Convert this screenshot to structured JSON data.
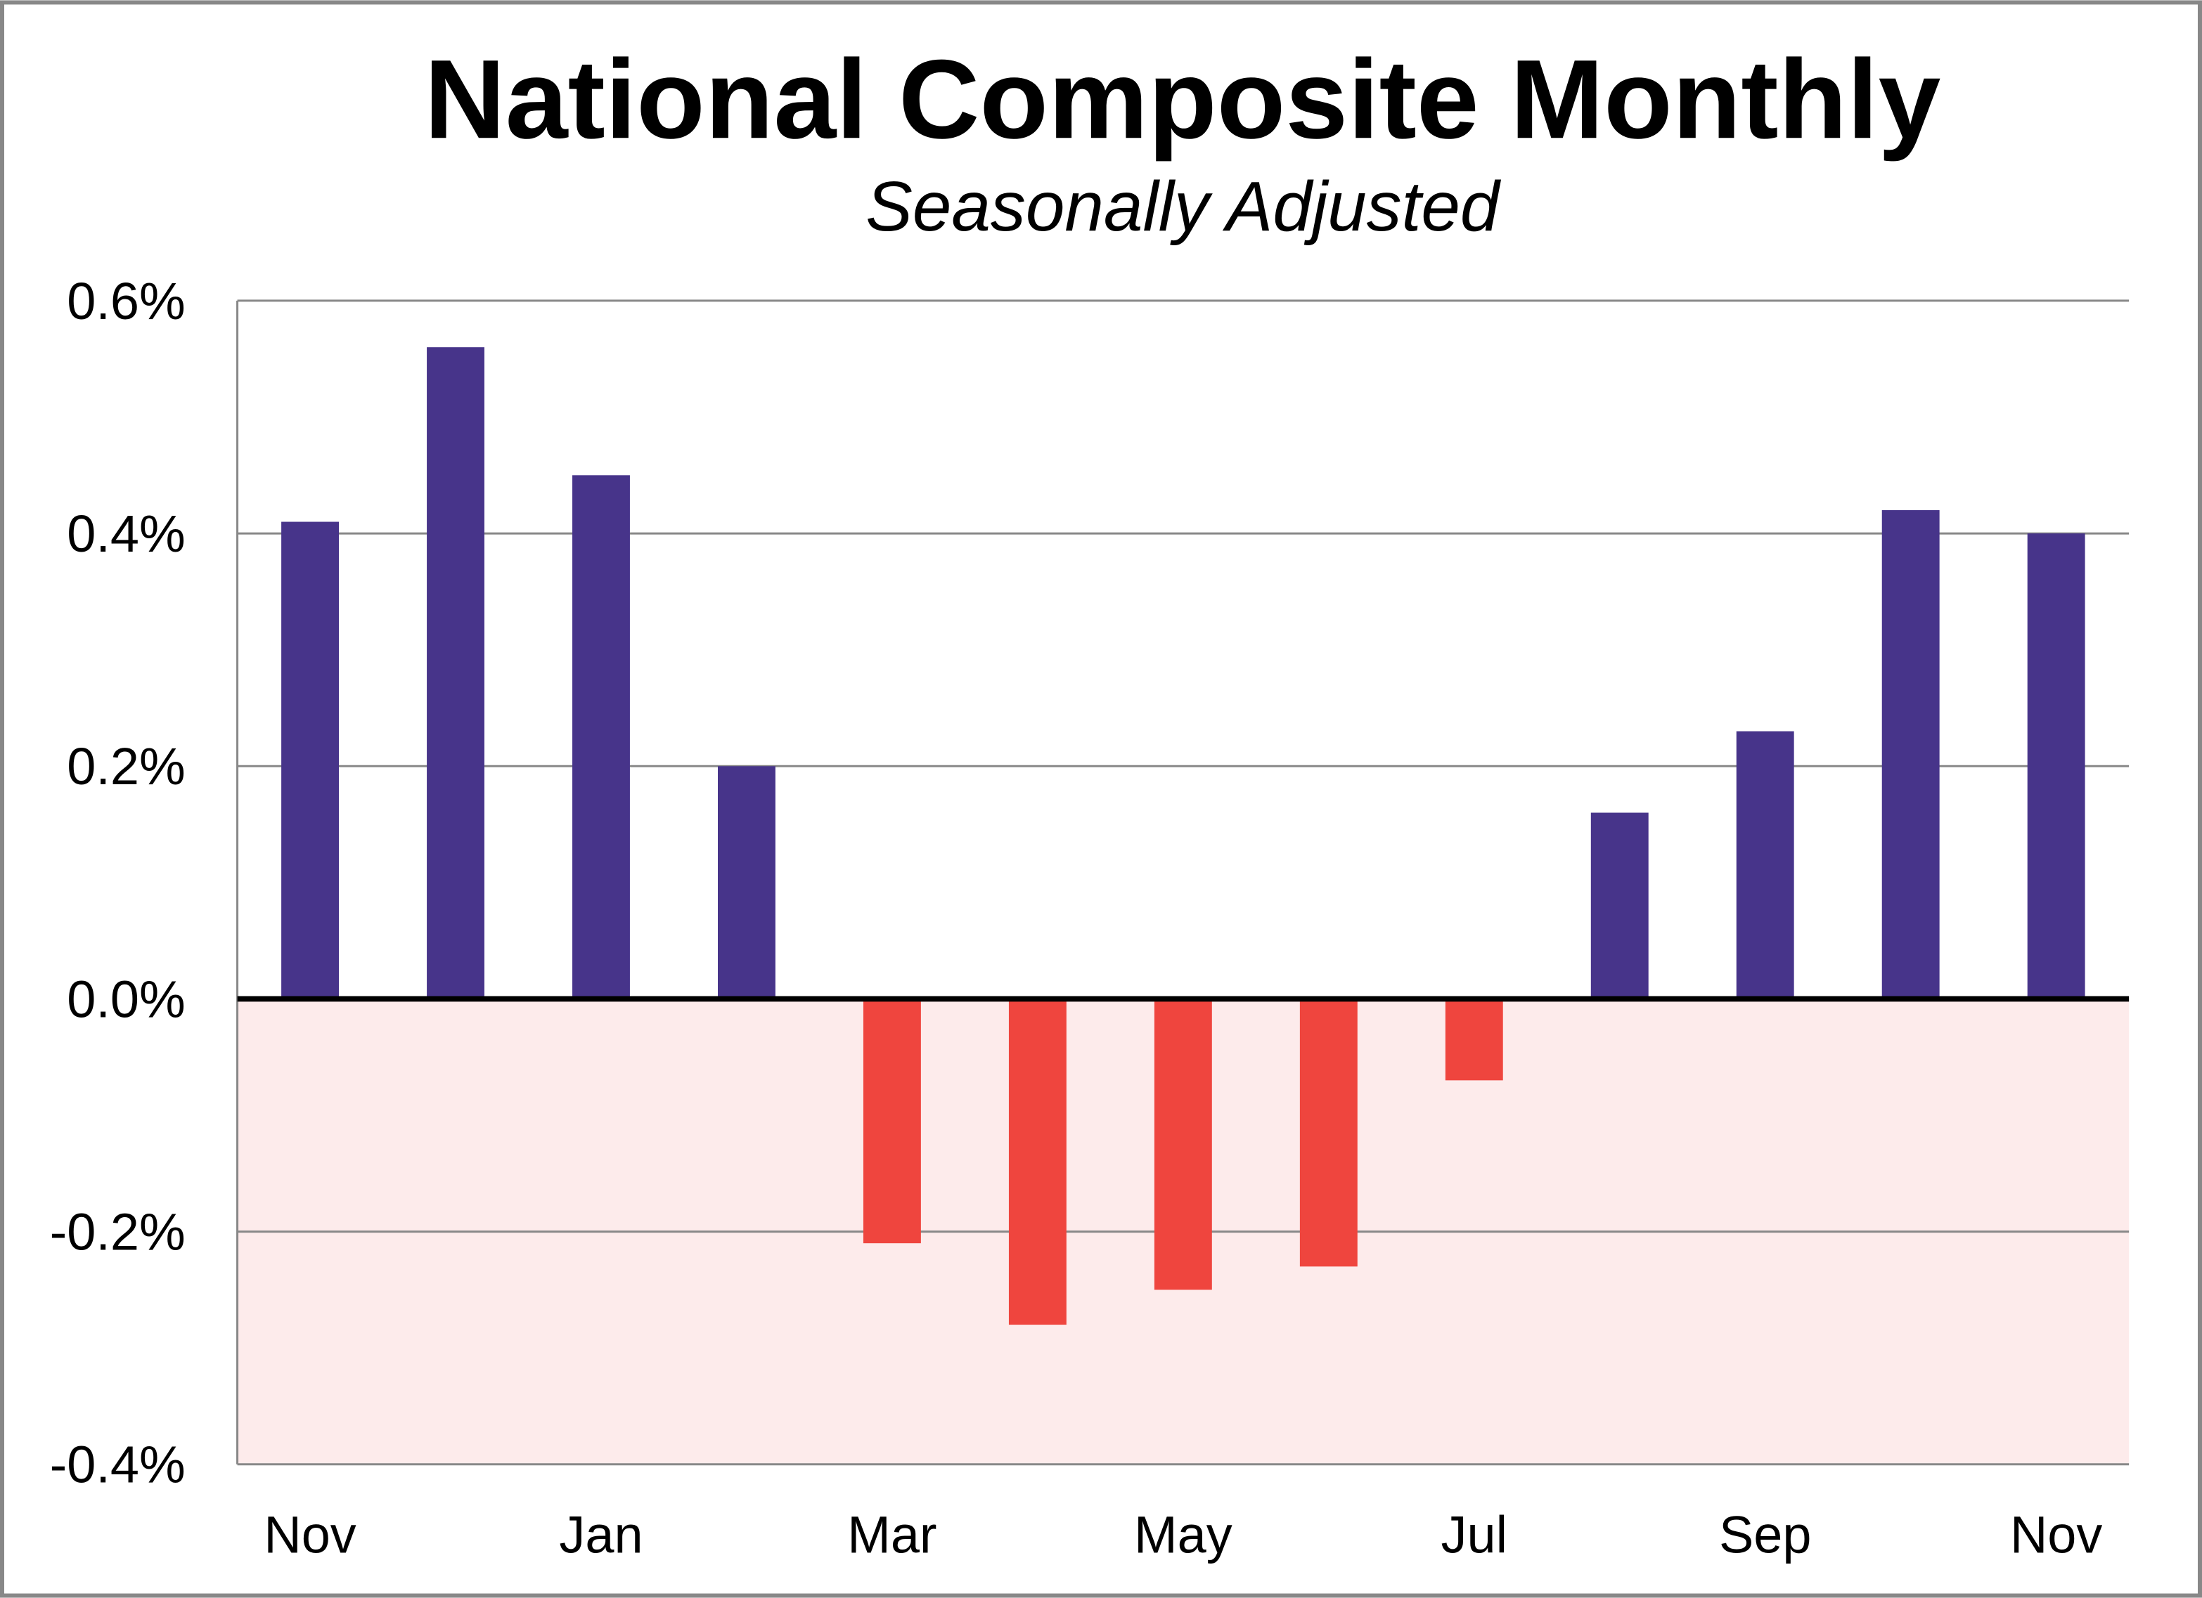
{
  "chart_data": {
    "type": "bar",
    "title": "National Composite Monthly",
    "subtitle": "Seasonally Adjusted",
    "xlabel": "",
    "ylabel": "",
    "x_tick_labels": [
      "Nov",
      "",
      "Jan",
      "",
      "Mar",
      "",
      "May",
      "",
      "Jul",
      "",
      "Sep",
      "",
      "Nov"
    ],
    "values": [
      0.41,
      0.56,
      0.45,
      0.2,
      -0.21,
      -0.28,
      -0.25,
      -0.23,
      -0.07,
      0.16,
      0.23,
      0.42,
      0.4
    ],
    "ylim": [
      -0.4,
      0.6
    ],
    "y_ticks": [
      0.6,
      0.4,
      0.2,
      0.0,
      -0.2,
      -0.4
    ],
    "y_tick_labels": [
      "0.6%",
      "0.4%",
      "0.2%",
      "0.0%",
      "-0.2%",
      "-0.4%"
    ],
    "grid": true,
    "negative_region_shaded": true,
    "colors": {
      "positive": "#47348a",
      "negative": "#ef453e",
      "negative_region": "#fdebeb",
      "grid": "#888888",
      "frame": "#888888"
    }
  }
}
